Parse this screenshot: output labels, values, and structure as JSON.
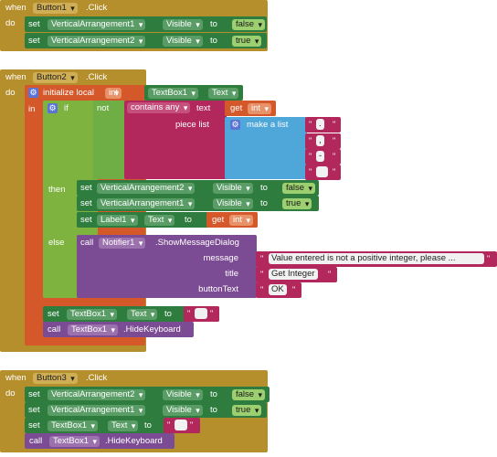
{
  "labels": {
    "when": "when",
    "do": "do",
    "set": "set",
    "to": "to",
    "call": "call",
    "in": "in",
    "if": "if",
    "not": "not",
    "then": "then",
    "else": "else",
    "get": "get",
    "text_kw": "text",
    "piece_list": "piece list",
    "make_a_list": "make a list",
    "initialize_local": "initialize local",
    "message": "message",
    "title": "title",
    "buttonText": "buttonText"
  },
  "icons": {
    "gear": "gear-icon",
    "dropdown": "chevron-down-icon"
  },
  "colors": {
    "event": "#b58f2c",
    "set": "#2e7d3f",
    "local": "#d4582a",
    "control": "#7fb340",
    "text": "#b3285c",
    "list": "#4ea6d9",
    "procedure": "#7b4b93"
  },
  "event1": {
    "component": "Button1",
    "event": ".Click",
    "set1": {
      "component": "VerticalArrangement1",
      "property": "Visible",
      "value": "false"
    },
    "set2": {
      "component": "VerticalArrangement2",
      "property": "Visible",
      "value": "true"
    }
  },
  "event2": {
    "component": "Button2",
    "event": ".Click",
    "local_var": "int",
    "init_value": {
      "component": "TextBox1",
      "property": "Text"
    },
    "contains": "contains any",
    "get_var": "int",
    "list_items": [
      ".",
      ",",
      "-",
      " "
    ],
    "then1": {
      "component": "VerticalArrangement2",
      "property": "Visible",
      "value": "false"
    },
    "then2": {
      "component": "VerticalArrangement1",
      "property": "Visible",
      "value": "true"
    },
    "then3": {
      "component": "Label1",
      "property": "Text",
      "get_var": "int"
    },
    "else_call": {
      "component": "Notifier1",
      "method": ".ShowMessageDialog",
      "message": "Value entered is not a positive integer, please ...",
      "title": "Get Integer",
      "buttonText": "OK"
    },
    "after_set": {
      "component": "TextBox1",
      "property": "Text",
      "value": " "
    },
    "after_call": {
      "component": "TextBox1",
      "method": ".HideKeyboard"
    }
  },
  "event3": {
    "component": "Button3",
    "event": ".Click",
    "set1": {
      "component": "VerticalArrangement2",
      "property": "Visible",
      "value": "false"
    },
    "set2": {
      "component": "VerticalArrangement1",
      "property": "Visible",
      "value": "true"
    },
    "set3": {
      "component": "TextBox1",
      "property": "Text",
      "value": " "
    },
    "call": {
      "component": "TextBox1",
      "method": ".HideKeyboard"
    }
  }
}
